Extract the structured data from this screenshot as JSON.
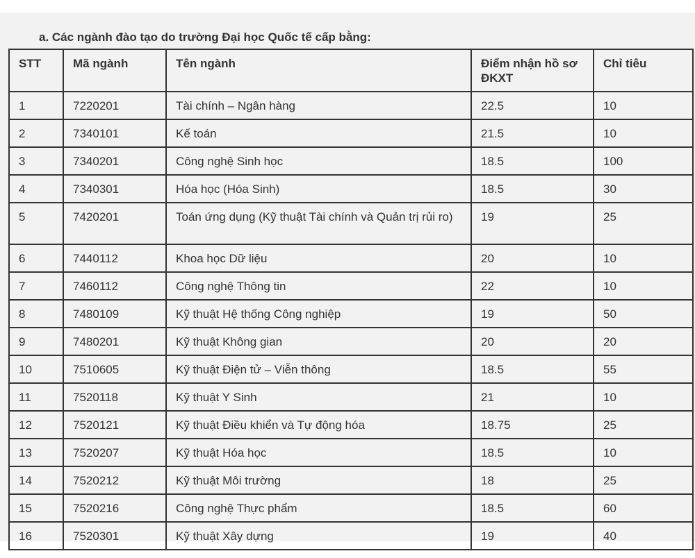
{
  "heading": "a. Các ngành đào tạo do trường Đại học Quốc tế cấp bằng:",
  "table": {
    "headers": [
      "STT",
      "Mã ngành",
      "Tên ngành",
      "Điểm nhận hồ sơ ĐKXT",
      "Chỉ tiêu"
    ],
    "rows": [
      [
        "1",
        "7220201",
        "Tài chính – Ngân hàng",
        "22.5",
        "10"
      ],
      [
        "2",
        "7340101",
        "Kế toán",
        "21.5",
        "10"
      ],
      [
        "3",
        "7340201",
        "Công nghệ Sinh học",
        "18.5",
        "100"
      ],
      [
        "4",
        "7340301",
        "Hóa học (Hóa Sinh)",
        "18.5",
        "30"
      ],
      [
        "5",
        "7420201",
        "Toán ứng dụng (Kỹ thuật Tài chính và Quản trị rủi ro)",
        "19",
        "25"
      ],
      [
        "6",
        "7440112",
        "Khoa học Dữ liệu",
        "20",
        "10"
      ],
      [
        "7",
        "7460112",
        "Công nghệ Thông tin",
        "22",
        "10"
      ],
      [
        "8",
        "7480109",
        "Kỹ thuật Hệ thống Công nghiệp",
        "19",
        "50"
      ],
      [
        "9",
        "7480201",
        "Kỹ thuật Không gian",
        "20",
        "20"
      ],
      [
        "10",
        "7510605",
        "Kỹ thuật Điện tử – Viễn thông",
        "18.5",
        "55"
      ],
      [
        "11",
        "7520118",
        "Kỹ thuật Y Sinh",
        "21",
        "10"
      ],
      [
        "12",
        "7520121",
        "Kỹ thuật Điều khiển và Tự động hóa",
        "18.75",
        "25"
      ],
      [
        "13",
        "7520207",
        "Kỹ thuật Hóa học",
        "18.5",
        "10"
      ],
      [
        "14",
        "7520212",
        "Kỹ thuật Môi trường",
        "18",
        "25"
      ],
      [
        "15",
        "7520216",
        "Công nghệ Thực phẩm",
        "18.5",
        "60"
      ],
      [
        "16",
        "7520301",
        "Kỹ thuật Xây dựng",
        "19",
        "40"
      ]
    ]
  }
}
